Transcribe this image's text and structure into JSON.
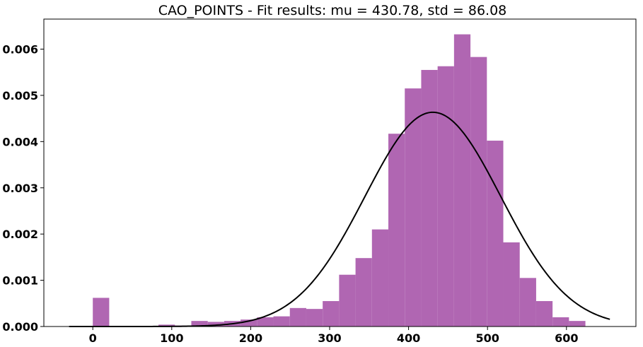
{
  "chart_data": {
    "type": "bar",
    "title": "CAO_POINTS - Fit results: mu = 430.78,  std = 86.08",
    "xlabel": "",
    "ylabel": "",
    "xlim": [
      -62,
      688
    ],
    "ylim": [
      0,
      0.00665
    ],
    "grid": false,
    "xticks": [
      0,
      100,
      200,
      300,
      400,
      500,
      600
    ],
    "xtick_labels": [
      "0",
      "100",
      "200",
      "300",
      "400",
      "500",
      "600"
    ],
    "yticks": [
      0.0,
      0.001,
      0.002,
      0.003,
      0.004,
      0.005,
      0.006
    ],
    "ytick_labels": [
      "0.000",
      "0.001",
      "0.002",
      "0.003",
      "0.004",
      "0.005",
      "0.006"
    ],
    "bar_color": "#b066b2",
    "bins": [
      {
        "x0": 0,
        "x1": 20.8,
        "density": 0.00062
      },
      {
        "x0": 20.8,
        "x1": 41.6,
        "density": 0.0
      },
      {
        "x0": 41.6,
        "x1": 62.4,
        "density": 0.0
      },
      {
        "x0": 62.4,
        "x1": 83.2,
        "density": 0.0
      },
      {
        "x0": 83.2,
        "x1": 104.0,
        "density": 4e-05
      },
      {
        "x0": 104.0,
        "x1": 124.8,
        "density": 2e-05
      },
      {
        "x0": 124.8,
        "x1": 145.6,
        "density": 0.00012
      },
      {
        "x0": 145.6,
        "x1": 166.4,
        "density": 0.0001
      },
      {
        "x0": 166.4,
        "x1": 187.2,
        "density": 0.00012
      },
      {
        "x0": 187.2,
        "x1": 208.0,
        "density": 0.00015
      },
      {
        "x0": 208.0,
        "x1": 228.8,
        "density": 0.0002
      },
      {
        "x0": 228.8,
        "x1": 249.6,
        "density": 0.00022
      },
      {
        "x0": 249.6,
        "x1": 270.4,
        "density": 0.0004
      },
      {
        "x0": 270.4,
        "x1": 291.2,
        "density": 0.00038
      },
      {
        "x0": 291.2,
        "x1": 312.0,
        "density": 0.00055
      },
      {
        "x0": 312.0,
        "x1": 332.8,
        "density": 0.00112
      },
      {
        "x0": 332.8,
        "x1": 353.6,
        "density": 0.00148
      },
      {
        "x0": 353.6,
        "x1": 374.4,
        "density": 0.0021
      },
      {
        "x0": 374.4,
        "x1": 395.2,
        "density": 0.00417
      },
      {
        "x0": 395.2,
        "x1": 416.0,
        "density": 0.00515
      },
      {
        "x0": 416.0,
        "x1": 436.8,
        "density": 0.00555
      },
      {
        "x0": 436.8,
        "x1": 457.6,
        "density": 0.00563
      },
      {
        "x0": 457.6,
        "x1": 478.4,
        "density": 0.00632
      },
      {
        "x0": 478.4,
        "x1": 499.2,
        "density": 0.00583
      },
      {
        "x0": 499.2,
        "x1": 520.0,
        "density": 0.00402
      },
      {
        "x0": 520.0,
        "x1": 540.8,
        "density": 0.00182
      },
      {
        "x0": 540.8,
        "x1": 561.6,
        "density": 0.00105
      },
      {
        "x0": 561.6,
        "x1": 582.4,
        "density": 0.00055
      },
      {
        "x0": 582.4,
        "x1": 603.2,
        "density": 0.0002
      },
      {
        "x0": 603.2,
        "x1": 624.0,
        "density": 0.00012
      }
    ],
    "fit_curve": {
      "type": "normal_pdf",
      "mu": 430.78,
      "std": 86.08,
      "x_range": [
        -30,
        655
      ],
      "color": "#000000"
    }
  }
}
